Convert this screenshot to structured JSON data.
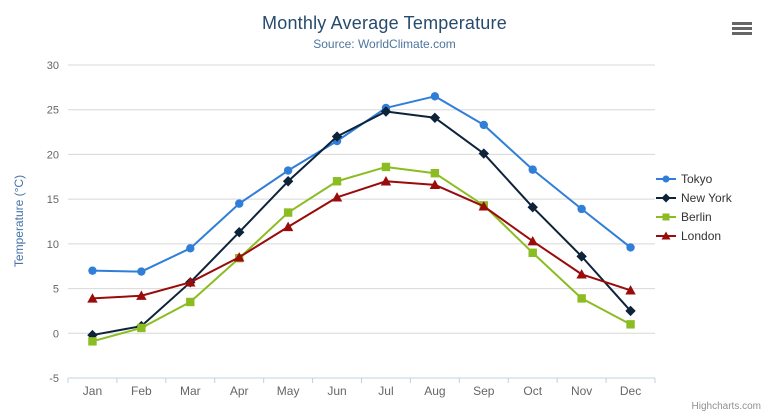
{
  "header": {
    "title": "Monthly Average Temperature",
    "subtitle": "Source: WorldClimate.com"
  },
  "credits": {
    "label": "Highcharts.com"
  },
  "context_menu": {
    "icon": "hamburger-menu-icon"
  },
  "colors": {
    "title": "#274b6d",
    "subtitle": "#4d759e",
    "axis_title": "#4572a7",
    "axis_labels": "#666666",
    "gridline": "#d8d8d8",
    "axis_line": "#c0d0e0",
    "legend_text": "#333333",
    "credits_text": "#909090"
  },
  "chart_data": {
    "type": "line",
    "title": "Monthly Average Temperature",
    "subtitle": "Source: WorldClimate.com",
    "xlabel": "",
    "ylabel": "Temperature (°C)",
    "ylim": [
      -5,
      30
    ],
    "ytick_interval": 5,
    "yticks": [
      -5,
      0,
      5,
      10,
      15,
      20,
      25,
      30
    ],
    "grid": true,
    "legend_position": "right",
    "categories": [
      "Jan",
      "Feb",
      "Mar",
      "Apr",
      "May",
      "Jun",
      "Jul",
      "Aug",
      "Sep",
      "Oct",
      "Nov",
      "Dec"
    ],
    "series": [
      {
        "name": "Tokyo",
        "color": "#2f7ed8",
        "marker": "circle",
        "values": [
          7.0,
          6.9,
          9.5,
          14.5,
          18.2,
          21.5,
          25.2,
          26.5,
          23.3,
          18.3,
          13.9,
          9.6
        ]
      },
      {
        "name": "New York",
        "color": "#0d233a",
        "marker": "diamond",
        "values": [
          -0.2,
          0.8,
          5.7,
          11.3,
          17.0,
          22.0,
          24.8,
          24.1,
          20.1,
          14.1,
          8.6,
          2.5
        ]
      },
      {
        "name": "Berlin",
        "color": "#8bbc21",
        "marker": "square",
        "values": [
          -0.9,
          0.6,
          3.5,
          8.4,
          13.5,
          17.0,
          18.6,
          17.9,
          14.3,
          9.0,
          3.9,
          1.0
        ]
      },
      {
        "name": "London",
        "color": "#9a0b0b",
        "marker": "triangle",
        "values": [
          3.9,
          4.2,
          5.7,
          8.5,
          11.9,
          15.2,
          17.0,
          16.6,
          14.2,
          10.3,
          6.6,
          4.8
        ]
      }
    ]
  }
}
